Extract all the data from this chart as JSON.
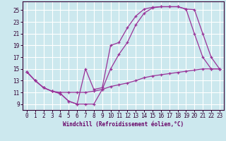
{
  "xlabel": "Windchill (Refroidissement éolien,°C)",
  "bg_color": "#cce8ee",
  "line_color": "#993399",
  "grid_color": "#ffffff",
  "xlim": [
    -0.5,
    23.5
  ],
  "ylim": [
    8.0,
    26.5
  ],
  "yticks": [
    9,
    11,
    13,
    15,
    17,
    19,
    21,
    23,
    25
  ],
  "xticks": [
    0,
    1,
    2,
    3,
    4,
    5,
    6,
    7,
    8,
    9,
    10,
    11,
    12,
    13,
    14,
    15,
    16,
    17,
    18,
    19,
    20,
    21,
    22,
    23
  ],
  "line1_x": [
    0,
    1,
    2,
    3,
    4,
    5,
    6,
    7,
    8,
    9,
    10,
    11,
    12,
    13,
    14,
    15,
    16,
    17,
    18,
    19,
    20,
    21,
    22,
    23
  ],
  "line1_y": [
    14.5,
    13.0,
    11.8,
    11.2,
    11.0,
    11.0,
    11.0,
    11.0,
    11.2,
    11.5,
    12.0,
    12.3,
    12.6,
    13.0,
    13.5,
    13.8,
    14.0,
    14.2,
    14.4,
    14.6,
    14.8,
    15.0,
    15.0,
    15.0
  ],
  "line2_x": [
    0,
    1,
    2,
    3,
    4,
    5,
    6,
    7,
    8,
    9,
    10,
    11,
    12,
    13,
    14,
    15,
    16,
    17,
    18,
    19,
    20,
    21,
    22,
    23
  ],
  "line2_y": [
    14.5,
    13.0,
    11.8,
    11.2,
    10.8,
    9.5,
    9.0,
    9.0,
    9.0,
    11.5,
    15.0,
    17.5,
    19.5,
    22.5,
    24.5,
    25.4,
    25.6,
    25.6,
    25.6,
    25.2,
    21.0,
    17.0,
    15.0,
    15.0
  ],
  "line3_x": [
    0,
    1,
    2,
    3,
    4,
    5,
    6,
    7,
    8,
    9,
    10,
    11,
    12,
    13,
    14,
    15,
    16,
    17,
    18,
    19,
    20,
    21,
    22,
    23
  ],
  "line3_y": [
    14.5,
    13.0,
    11.8,
    11.2,
    10.8,
    9.5,
    9.0,
    15.0,
    11.5,
    11.8,
    19.0,
    19.5,
    22.0,
    24.0,
    25.2,
    25.5,
    25.6,
    25.6,
    25.6,
    25.2,
    25.1,
    21.0,
    17.0,
    15.0
  ],
  "label_color": "#660066",
  "spine_color": "#330033",
  "tick_fontsize": 5.5,
  "xlabel_fontsize": 5.5
}
